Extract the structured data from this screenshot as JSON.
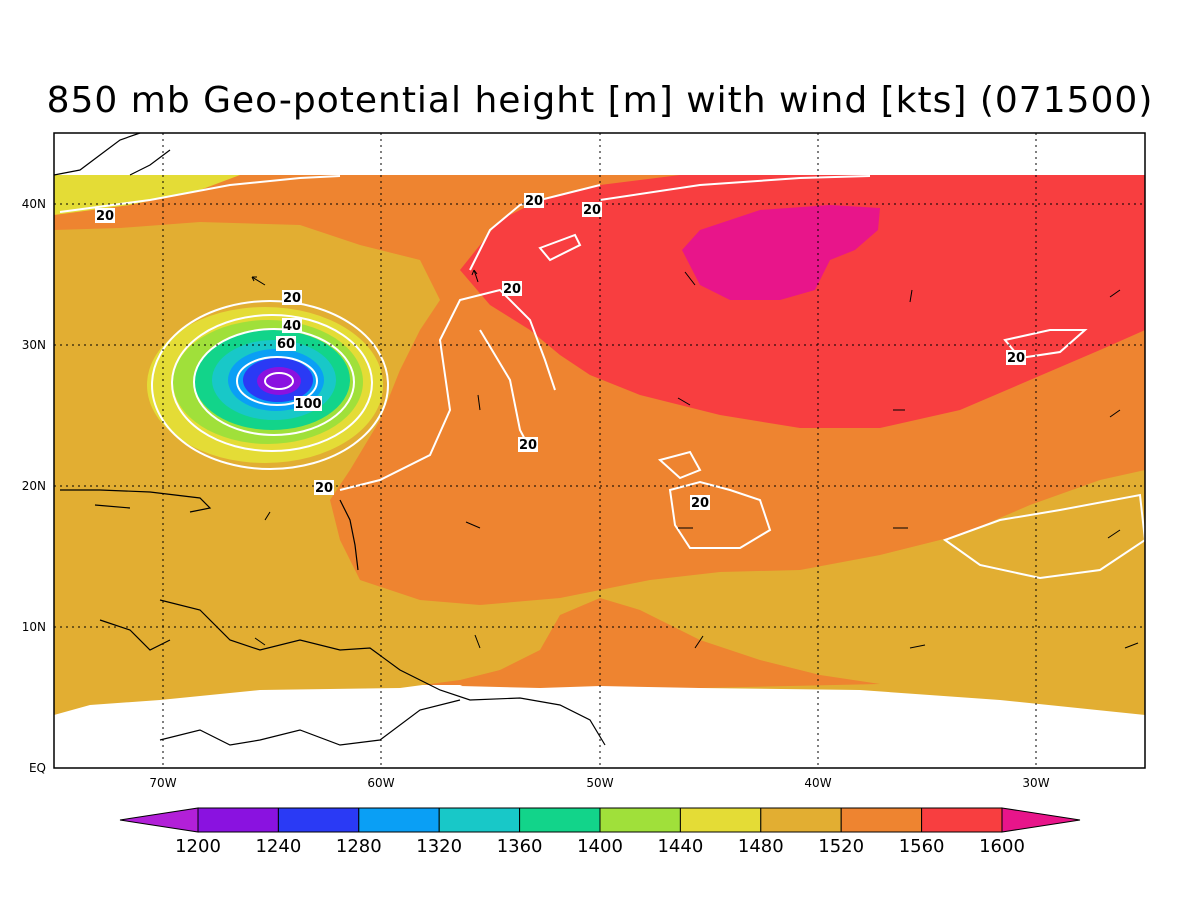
{
  "title": "850 mb Geo-potential height [m] with wind [kts] (071500)",
  "map": {
    "lat_labels": [
      "40N",
      "30N",
      "20N",
      "10N",
      "EQ"
    ],
    "lon_labels": [
      "70W",
      "60W",
      "50W",
      "40W",
      "30W"
    ],
    "contour_labels": [
      "20",
      "20",
      "20",
      "20",
      "20",
      "20",
      "20",
      "20",
      "20",
      "40",
      "60",
      "100"
    ]
  },
  "colorbar": {
    "labels": [
      "1200",
      "1240",
      "1280",
      "1320",
      "1360",
      "1400",
      "1440",
      "1480",
      "1520",
      "1560",
      "1600"
    ],
    "colors": [
      "#b220d8",
      "#8a12e0",
      "#2a3af5",
      "#0a9ff5",
      "#18c8c8",
      "#12d48a",
      "#a0e03a",
      "#e4dc36",
      "#e2ae32",
      "#ee8430",
      "#f83e40",
      "#e8158a"
    ]
  }
}
